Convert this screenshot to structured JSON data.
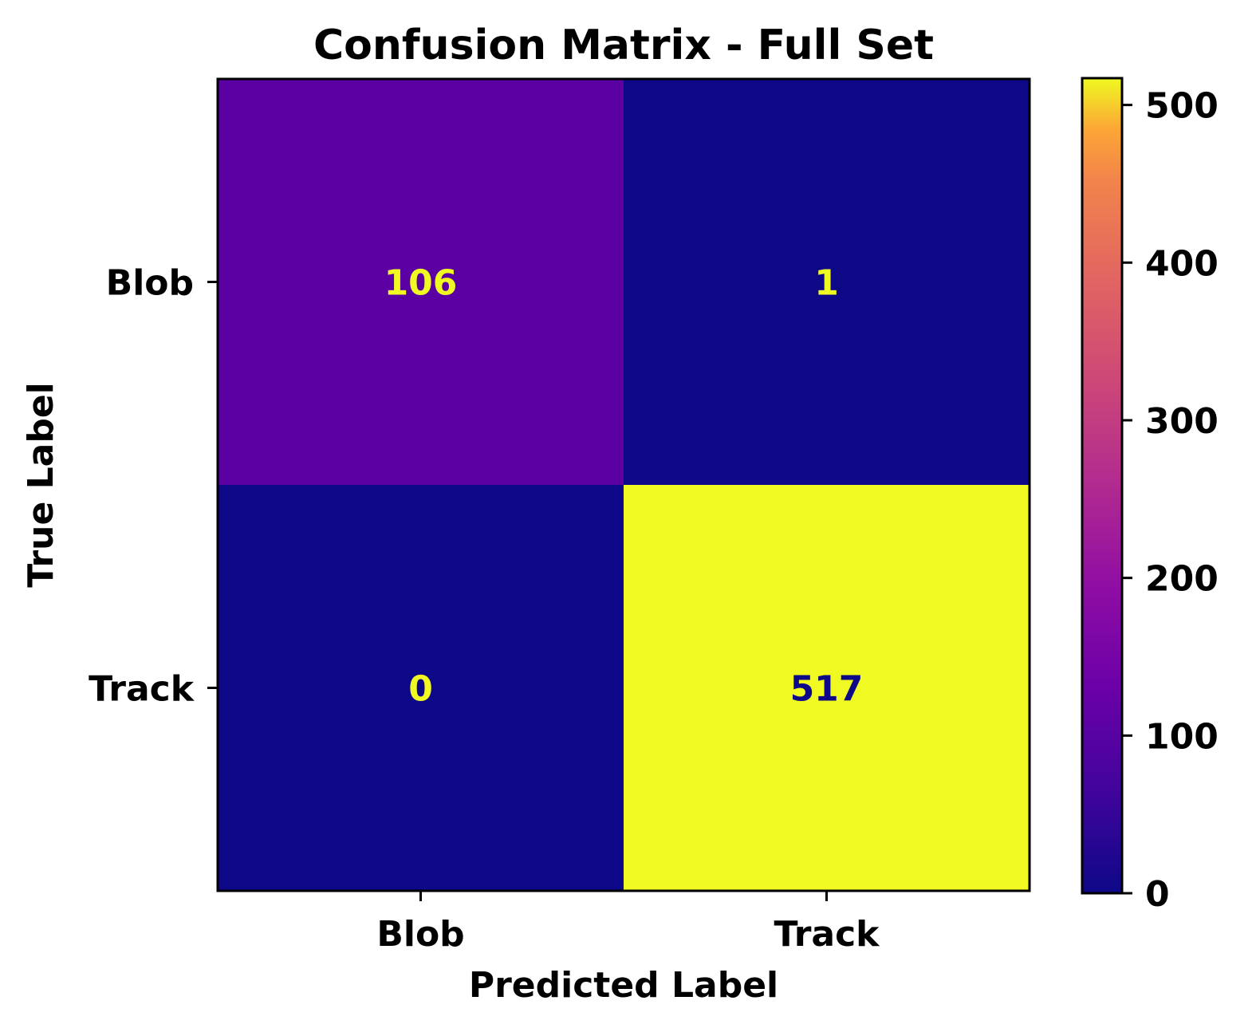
{
  "chart_data": {
    "type": "heatmap",
    "title": "Confusion Matrix - Full Set",
    "xlabel": "Predicted Label",
    "ylabel": "True Label",
    "x_categories": [
      "Blob",
      "Track"
    ],
    "y_categories": [
      "Blob",
      "Track"
    ],
    "matrix": [
      [
        106,
        1
      ],
      [
        0,
        517
      ]
    ],
    "cell_labels": [
      [
        "106",
        "1"
      ],
      [
        "0",
        "517"
      ]
    ],
    "colormap": "plasma",
    "colorbar": {
      "range": [
        0,
        517
      ],
      "ticks": [
        0,
        100,
        200,
        300,
        400,
        500
      ],
      "tick_labels": [
        "0",
        "100",
        "200",
        "300",
        "400",
        "500"
      ]
    },
    "grid": false,
    "annotation_colors": {
      "on_dark": "#f0f921",
      "on_light": "#0d0887"
    }
  }
}
